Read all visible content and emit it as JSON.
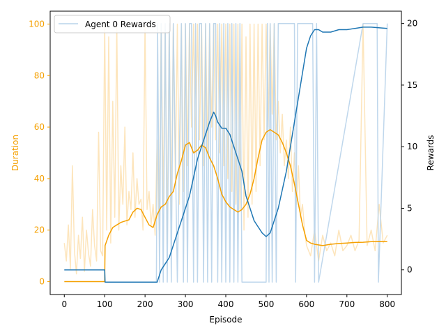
{
  "colors": {
    "duration_raw": "#fde0b0",
    "duration_smooth": "#f5a000",
    "duration_axis": "#f5a000",
    "rewards_raw": "#b8d3ea",
    "rewards_smooth": "#1f77b4",
    "axis": "#000000"
  },
  "chart_data": {
    "type": "line",
    "xlabel": "Episode",
    "ylabel_left": "Duration",
    "ylabel_right": "Rewards",
    "xlim": [
      -35,
      835
    ],
    "ylim_left": [
      -5,
      105
    ],
    "ylim_right": [
      -2,
      21
    ],
    "xticks": [
      0,
      100,
      200,
      300,
      400,
      500,
      600,
      700,
      800
    ],
    "yticks_left": [
      0,
      20,
      40,
      60,
      80,
      100
    ],
    "yticks_right": [
      0,
      5,
      10,
      15,
      20
    ],
    "grid": false,
    "legend": {
      "position": "top-left",
      "entries": [
        "Agent 0 Rewards"
      ]
    },
    "series": [
      {
        "name": "Agent 0 Rewards",
        "axis": "right",
        "style": "raw",
        "x": [
          0,
          100,
          101,
          228,
          231,
          236,
          240,
          245,
          250,
          255,
          260,
          265,
          270,
          280,
          290,
          295,
          300,
          305,
          310,
          315,
          320,
          325,
          330,
          335,
          340,
          345,
          350,
          355,
          360,
          365,
          370,
          375,
          380,
          385,
          390,
          395,
          400,
          405,
          410,
          415,
          420,
          425,
          430,
          435,
          440,
          445,
          500,
          503,
          507,
          510,
          515,
          520,
          525,
          530,
          570,
          573,
          578,
          615,
          620,
          625,
          630,
          740,
          745,
          775,
          778,
          800
        ],
        "values": [
          0,
          0,
          -1,
          -1,
          20,
          -1,
          20,
          -1,
          20,
          -1,
          20,
          -1,
          20,
          -1,
          20,
          -1,
          20,
          -1,
          20,
          20,
          -1,
          20,
          -1,
          20,
          20,
          -1,
          20,
          -1,
          20,
          -1,
          20,
          20,
          -1,
          20,
          -1,
          20,
          -1,
          20,
          -1,
          20,
          -1,
          20,
          -1,
          20,
          -1,
          -1,
          -1,
          20,
          -1,
          20,
          -1,
          20,
          -1,
          20,
          20,
          -1,
          20,
          20,
          -1,
          20,
          -1,
          20,
          20,
          20,
          -1,
          20
        ]
      },
      {
        "name": "",
        "axis": "right",
        "style": "smooth",
        "x": [
          0,
          100,
          101,
          230,
          240,
          250,
          260,
          270,
          280,
          290,
          300,
          310,
          320,
          330,
          340,
          350,
          360,
          370,
          375,
          380,
          390,
          400,
          410,
          420,
          430,
          440,
          450,
          460,
          470,
          480,
          490,
          500,
          510,
          520,
          530,
          540,
          550,
          560,
          570,
          580,
          590,
          600,
          610,
          620,
          630,
          640,
          660,
          680,
          700,
          720,
          740,
          750,
          760,
          800
        ],
        "values": [
          0,
          0,
          -1,
          -1,
          0,
          0.5,
          1,
          2,
          3,
          4,
          5,
          6,
          7.5,
          9,
          10,
          11,
          12,
          12.8,
          12.5,
          12,
          11.5,
          11.5,
          11,
          10,
          9,
          8,
          6,
          5,
          4,
          3.5,
          3,
          2.7,
          3,
          4,
          5,
          6.5,
          8,
          10,
          12,
          14,
          16,
          18,
          19,
          19.5,
          19.5,
          19.3,
          19.3,
          19.5,
          19.5,
          19.6,
          19.7,
          19.7,
          19.7,
          19.6
        ]
      },
      {
        "name": "",
        "axis": "left",
        "style": "raw",
        "x": [
          0,
          5,
          10,
          15,
          20,
          25,
          30,
          35,
          40,
          45,
          50,
          55,
          60,
          65,
          70,
          75,
          80,
          85,
          90,
          95,
          100,
          105,
          110,
          115,
          120,
          125,
          130,
          135,
          140,
          145,
          150,
          155,
          160,
          165,
          170,
          175,
          180,
          185,
          190,
          195,
          200,
          205,
          210,
          215,
          220,
          225,
          230,
          235,
          240,
          245,
          250,
          255,
          260,
          265,
          270,
          275,
          280,
          285,
          290,
          295,
          300,
          305,
          310,
          315,
          320,
          325,
          330,
          335,
          340,
          345,
          350,
          355,
          360,
          365,
          370,
          375,
          380,
          385,
          390,
          395,
          400,
          405,
          410,
          415,
          420,
          425,
          430,
          435,
          440,
          445,
          450,
          455,
          460,
          465,
          470,
          475,
          480,
          485,
          490,
          495,
          500,
          505,
          510,
          515,
          520,
          525,
          530,
          535,
          540,
          545,
          550,
          555,
          560,
          565,
          570,
          575,
          580,
          585,
          590,
          595,
          600,
          610,
          620,
          630,
          640,
          650,
          660,
          670,
          680,
          690,
          700,
          710,
          720,
          730,
          740,
          750,
          760,
          770,
          780,
          790,
          800
        ],
        "values": [
          15,
          8,
          22,
          5,
          45,
          12,
          3,
          18,
          9,
          25,
          4,
          20,
          11,
          6,
          28,
          14,
          8,
          58,
          12,
          10,
          100,
          20,
          95,
          15,
          70,
          25,
          100,
          20,
          45,
          30,
          60,
          22,
          35,
          28,
          50,
          25,
          40,
          30,
          32,
          20,
          100,
          28,
          35,
          22,
          30,
          18,
          55,
          20,
          100,
          30,
          100,
          15,
          100,
          25,
          100,
          40,
          100,
          30,
          100,
          35,
          100,
          45,
          100,
          60,
          100,
          50,
          100,
          55,
          100,
          45,
          100,
          50,
          100,
          60,
          100,
          55,
          100,
          50,
          100,
          45,
          100,
          40,
          100,
          35,
          100,
          30,
          100,
          28,
          100,
          20,
          95,
          25,
          100,
          30,
          100,
          35,
          100,
          45,
          100,
          55,
          100,
          60,
          100,
          65,
          100,
          55,
          70,
          50,
          65,
          45,
          55,
          40,
          60,
          35,
          50,
          30,
          45,
          25,
          30,
          20,
          14,
          10,
          20,
          8,
          18,
          12,
          15,
          10,
          20,
          12,
          14,
          18,
          12,
          16,
          100,
          14,
          20,
          12,
          30,
          15,
          18
        ]
      },
      {
        "name": "",
        "axis": "left",
        "style": "smooth",
        "x": [
          0,
          100,
          101,
          110,
          120,
          130,
          140,
          150,
          160,
          170,
          180,
          190,
          200,
          210,
          220,
          230,
          240,
          250,
          260,
          270,
          280,
          290,
          300,
          310,
          320,
          330,
          340,
          350,
          360,
          370,
          380,
          390,
          400,
          410,
          420,
          430,
          440,
          450,
          460,
          470,
          480,
          490,
          500,
          510,
          520,
          530,
          540,
          550,
          560,
          570,
          580,
          590,
          600,
          610,
          620,
          640,
          660,
          680,
          700,
          720,
          740,
          760,
          780,
          800
        ],
        "values": [
          0,
          0,
          14,
          18,
          21,
          22,
          23,
          23.5,
          24,
          27,
          28.5,
          28,
          25,
          22,
          21,
          26,
          29,
          30,
          33,
          35,
          42,
          47,
          53,
          54,
          50,
          51,
          53,
          52,
          48,
          45,
          40,
          34,
          31,
          29,
          28,
          27,
          28,
          30,
          34,
          40,
          48,
          55,
          58,
          59,
          58,
          57,
          54,
          50,
          45,
          38,
          30,
          22,
          16,
          15,
          14.5,
          14,
          14.5,
          14.8,
          15,
          15.2,
          15.3,
          15.5,
          15.6,
          15.5
        ]
      }
    ]
  }
}
